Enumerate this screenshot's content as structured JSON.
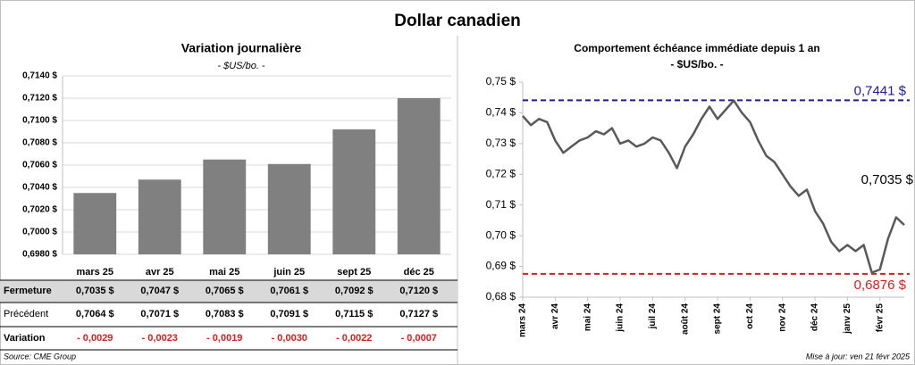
{
  "title": "Dollar canadien",
  "chart_data": [
    {
      "type": "bar",
      "title": "Variation journalière",
      "subtitle": "- $US/bo. -",
      "categories": [
        "mars 25",
        "avr 25",
        "mai 25",
        "juin 25",
        "sept 25",
        "déc 25"
      ],
      "values": [
        0.7035,
        0.7047,
        0.7065,
        0.7061,
        0.7092,
        0.712
      ],
      "value_labels": [
        "0,7035 $",
        "0,7047 $",
        "0,7065 $",
        "0,7061 $",
        "0,7092 $",
        "0,7120 $"
      ],
      "color": "#808080",
      "ylim": [
        0.698,
        0.714
      ],
      "yticks": [
        {
          "value": 0.698,
          "label": "0,6980 $"
        },
        {
          "value": 0.7,
          "label": "0,7000 $"
        },
        {
          "value": 0.702,
          "label": "0,7020 $"
        },
        {
          "value": 0.704,
          "label": "0,7040 $"
        },
        {
          "value": 0.706,
          "label": "0,7060 $"
        },
        {
          "value": 0.708,
          "label": "0,7080 $"
        },
        {
          "value": 0.71,
          "label": "0,7100 $"
        },
        {
          "value": 0.712,
          "label": "0,7120 $"
        },
        {
          "value": 0.714,
          "label": "0,7140 $"
        }
      ],
      "grid": true
    },
    {
      "type": "line",
      "title": "Comportement échéance immédiate depuis 1 an",
      "subtitle": "- $US/bo. -",
      "x": [
        "mars 24",
        null,
        null,
        null,
        "avr 24",
        null,
        null,
        null,
        "mai 24",
        null,
        null,
        null,
        "juin 24",
        null,
        null,
        null,
        "juil 24",
        null,
        null,
        null,
        "août 24",
        null,
        null,
        null,
        "sept 24",
        null,
        null,
        null,
        "oct 24",
        null,
        null,
        null,
        "nov 24",
        null,
        null,
        null,
        "déc 24",
        null,
        null,
        null,
        "janv 25",
        null,
        null,
        null,
        "févr 25",
        null,
        null,
        null
      ],
      "values": [
        0.739,
        0.736,
        0.738,
        0.737,
        0.731,
        0.727,
        0.729,
        0.731,
        0.732,
        0.734,
        0.733,
        0.735,
        0.73,
        0.731,
        0.729,
        0.73,
        0.732,
        0.731,
        0.727,
        0.722,
        0.729,
        0.733,
        0.738,
        0.742,
        0.738,
        0.741,
        0.744,
        0.74,
        0.737,
        0.731,
        0.726,
        0.724,
        0.72,
        0.716,
        0.713,
        0.715,
        0.708,
        0.704,
        0.698,
        0.695,
        0.697,
        0.695,
        0.697,
        0.688,
        0.689,
        0.699,
        0.706,
        0.7035
      ],
      "value_labels": [
        null,
        null,
        null,
        null,
        null,
        null,
        null,
        null,
        null,
        null,
        null,
        null,
        null,
        null,
        null,
        null,
        null,
        null,
        null,
        null,
        null,
        null,
        null,
        null,
        null,
        null,
        null,
        null,
        null,
        null,
        null,
        null,
        null,
        null,
        null,
        null,
        null,
        null,
        null,
        null,
        null,
        null,
        null,
        null,
        null,
        null,
        null,
        "0,7035 $"
      ],
      "color": "#595959",
      "ylim": [
        0.68,
        0.75
      ],
      "yticks": [
        {
          "value": 0.68,
          "label": "0,68 $"
        },
        {
          "value": 0.69,
          "label": "0,69 $"
        },
        {
          "value": 0.7,
          "label": "0,70 $"
        },
        {
          "value": 0.71,
          "label": "0,71 $"
        },
        {
          "value": 0.72,
          "label": "0,72 $"
        },
        {
          "value": 0.73,
          "label": "0,73 $"
        },
        {
          "value": 0.74,
          "label": "0,74 $"
        },
        {
          "value": 0.75,
          "label": "0,75 $"
        }
      ],
      "hlines": [
        {
          "value": 0.7441,
          "label": "0,7441 $",
          "color": "#1a1aa6"
        },
        {
          "value": 0.6876,
          "label": "0,6876 $",
          "color": "#e31a1c"
        }
      ]
    }
  ],
  "table": {
    "row_labels": [
      "Fermeture",
      "Précédent",
      "Variation"
    ],
    "previous": [
      "0,7064 $",
      "0,7071 $",
      "0,7083 $",
      "0,7091 $",
      "0,7115 $",
      "0,7127 $"
    ],
    "variation": [
      "- 0,0029",
      "- 0,0023",
      "- 0,0019",
      "- 0,0030",
      "- 0,0022",
      "- 0,0007"
    ]
  },
  "source": "Source: CME Group",
  "updated": "Mise à jour: ven 21 févr 2025"
}
